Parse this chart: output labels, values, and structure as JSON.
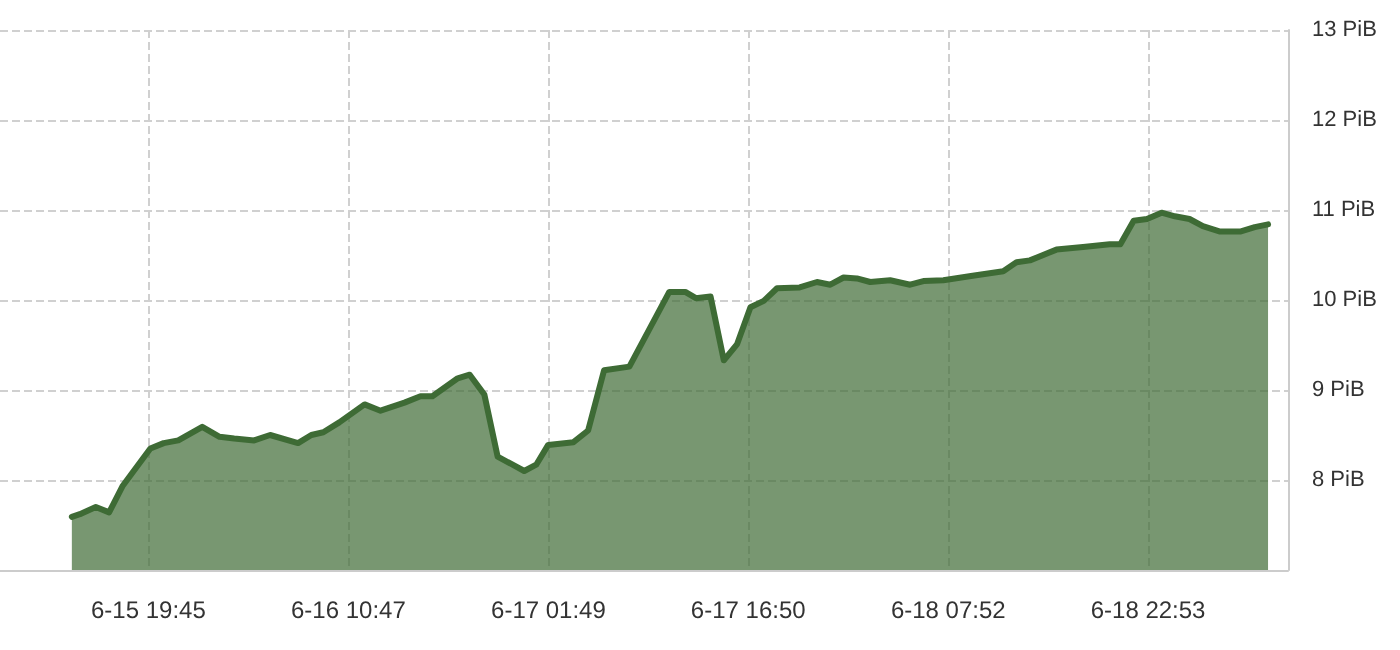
{
  "chart_data": {
    "type": "area",
    "x": [
      "--06-15T14:00",
      "--06-15T14:36",
      "--06-15T15:48",
      "--06-15T16:48",
      "--06-15T17:48",
      "--06-15T18:48",
      "--06-15T19:54",
      "--06-15T20:54",
      "--06-15T22:00",
      "--06-15T23:48",
      "--06-16T01:06",
      "--06-16T02:12",
      "--06-16T03:42",
      "--06-16T04:54",
      "--06-16T07:00",
      "--06-16T08:00",
      "--06-16T08:54",
      "--06-16T10:06",
      "--06-16T12:00",
      "--06-16T13:12",
      "--06-16T15:00",
      "--06-16T16:12",
      "--06-16T17:06",
      "--06-16T19:00",
      "--06-16T19:54",
      "--06-16T21:00",
      "--06-16T22:00",
      "--06-17T00:00",
      "--06-17T00:54",
      "--06-17T01:48",
      "--06-17T03:42",
      "--06-17T04:48",
      "--06-17T06:00",
      "--06-17T07:54",
      "--06-17T10:54",
      "--06-17T12:06",
      "--06-17T12:54",
      "--06-17T14:00",
      "--06-17T15:00",
      "--06-17T16:00",
      "--06-17T17:00",
      "--06-17T18:00",
      "--06-17T19:00",
      "--06-17T20:42",
      "--06-17T22:00",
      "--06-17T23:00",
      "--06-18T00:00",
      "--06-18T01:00",
      "--06-18T02:00",
      "--06-18T03:30",
      "--06-18T05:00",
      "--06-18T06:00",
      "--06-18T07:30",
      "--06-18T09:42",
      "--06-18T12:00",
      "--06-18T13:00",
      "--06-18T14:00",
      "--06-18T16:00",
      "--06-18T18:00",
      "--06-18T20:00",
      "--06-18T20:48",
      "--06-18T21:48",
      "--06-18T22:48",
      "--06-18T23:54",
      "--06-19T00:54",
      "--06-19T02:00",
      "--06-19T03:00",
      "--06-19T04:18",
      "--06-19T05:48",
      "--06-19T06:54",
      "--06-19T07:54"
    ],
    "series": [
      {
        "color": "#3e6b35",
        "values": [
          7.59,
          7.62,
          7.7,
          7.64,
          7.93,
          8.13,
          8.35,
          8.41,
          8.44,
          8.59,
          8.48,
          8.46,
          8.44,
          8.5,
          8.41,
          8.5,
          8.53,
          8.64,
          8.84,
          8.77,
          8.86,
          8.93,
          8.93,
          9.13,
          9.17,
          8.95,
          8.26,
          8.1,
          8.17,
          8.39,
          8.42,
          8.55,
          9.22,
          9.26,
          10.09,
          10.09,
          10.02,
          10.04,
          9.33,
          9.51,
          9.92,
          9.99,
          10.13,
          10.14,
          10.2,
          10.17,
          10.25,
          10.24,
          10.2,
          10.22,
          10.17,
          10.21,
          10.22,
          10.27,
          10.32,
          10.42,
          10.44,
          10.56,
          10.59,
          10.62,
          10.62,
          10.88,
          10.9,
          10.97,
          10.93,
          10.9,
          10.82,
          10.76,
          10.76,
          10.81,
          10.84
        ]
      }
    ],
    "xlim": [
      "--06-15T08:36",
      "--06-19T09:24"
    ],
    "xticks": [
      {
        "value": "--06-15T19:45",
        "label": "6-15 19:45"
      },
      {
        "value": "--06-16T10:47",
        "label": "6-16 10:47"
      },
      {
        "value": "--06-17T01:49",
        "label": "6-17 01:49"
      },
      {
        "value": "--06-17T16:50",
        "label": "6-17 16:50"
      },
      {
        "value": "--06-18T07:52",
        "label": "6-18 07:52"
      },
      {
        "value": "--06-18T22:53",
        "label": "6-18 22:53"
      }
    ],
    "ylim": [
      7,
      13
    ],
    "yticks": [
      {
        "value": 8,
        "label": "8 PiB"
      },
      {
        "value": 9,
        "label": "9 PiB"
      },
      {
        "value": 10,
        "label": "10 PiB"
      },
      {
        "value": 11,
        "label": "11 PiB"
      },
      {
        "value": 12,
        "label": "12 PiB"
      },
      {
        "value": 13,
        "label": "13 PiB"
      }
    ],
    "grid": true,
    "marker": "none",
    "line_style": "solid"
  }
}
